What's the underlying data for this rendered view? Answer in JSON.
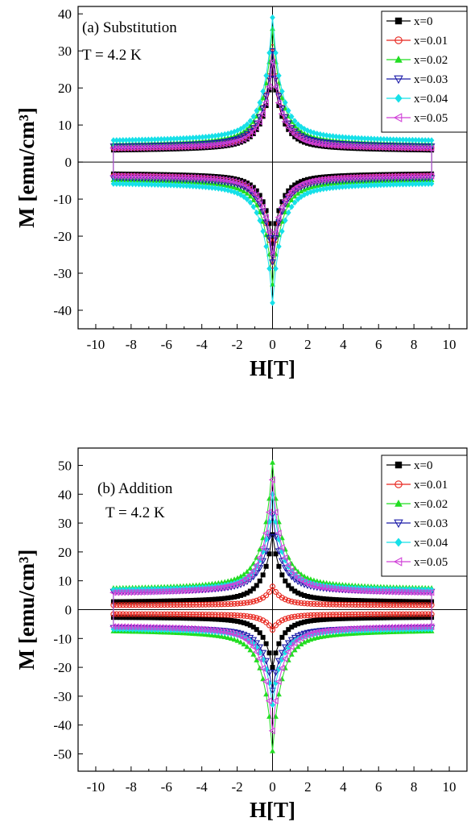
{
  "chart_data": [
    {
      "type": "line",
      "panel": "a",
      "annotation": [
        "(a) Substitution",
        "T = 4.2 K"
      ],
      "xlabel": "H[T]",
      "ylabel": "M [emu/cm³]",
      "xlim": [
        -11,
        11
      ],
      "ylim": [
        -45,
        42
      ],
      "xticks": [
        -10,
        -8,
        -6,
        -4,
        -2,
        0,
        2,
        4,
        6,
        8,
        10
      ],
      "yticks": [
        -40,
        -30,
        -20,
        -10,
        0,
        10,
        20,
        30,
        40
      ],
      "legend_position": "top-right",
      "grid": false,
      "series": [
        {
          "name": "x=0",
          "color": "#000000",
          "marker": "square",
          "peak": 26,
          "tail": 3,
          "peak_neg": -22
        },
        {
          "name": "x=0.01",
          "color": "#e8241c",
          "marker": "circle-open",
          "peak": 31,
          "tail": 3.5,
          "peak_neg": -28
        },
        {
          "name": "x=0.02",
          "color": "#22dd22",
          "marker": "triangle-up",
          "peak": 36,
          "tail": 4.5,
          "peak_neg": -33
        },
        {
          "name": "x=0.03",
          "color": "#1a1aa8",
          "marker": "triangle-down-open",
          "peak": 30,
          "tail": 4,
          "peak_neg": -27
        },
        {
          "name": "x=0.04",
          "color": "#16e0e8",
          "marker": "diamond",
          "peak": 39,
          "tail": 5.5,
          "peak_neg": -38
        },
        {
          "name": "x=0.05",
          "color": "#d040d8",
          "marker": "triangle-left-open",
          "peak": 27,
          "tail": 3.5,
          "peak_neg": -25
        }
      ]
    },
    {
      "type": "line",
      "panel": "b",
      "annotation": [
        "(b) Addition",
        "T = 4.2 K"
      ],
      "xlabel": "H[T]",
      "ylabel": "M [emu/cm³]",
      "xlim": [
        -11,
        11
      ],
      "ylim": [
        -56,
        56
      ],
      "xticks": [
        -10,
        -8,
        -6,
        -4,
        -2,
        0,
        2,
        4,
        6,
        8,
        10
      ],
      "yticks": [
        -50,
        -40,
        -30,
        -20,
        -10,
        0,
        10,
        20,
        30,
        40,
        50
      ],
      "legend_position": "top-right",
      "grid": false,
      "series": [
        {
          "name": "x=0",
          "color": "#000000",
          "marker": "square",
          "peak": 26,
          "tail": 2.5,
          "peak_neg": -20
        },
        {
          "name": "x=0.01",
          "color": "#e8241c",
          "marker": "circle-open",
          "peak": 8,
          "tail": 1.5,
          "peak_neg": -7
        },
        {
          "name": "x=0.02",
          "color": "#22dd22",
          "marker": "triangle-up",
          "peak": 51,
          "tail": 7,
          "peak_neg": -49
        },
        {
          "name": "x=0.03",
          "color": "#1a1aa8",
          "marker": "triangle-down-open",
          "peak": 33,
          "tail": 6,
          "peak_neg": -28
        },
        {
          "name": "x=0.04",
          "color": "#16e0e8",
          "marker": "diamond",
          "peak": 40,
          "tail": 6.5,
          "peak_neg": -33
        },
        {
          "name": "x=0.05",
          "color": "#d040d8",
          "marker": "triangle-left-open",
          "peak": 45,
          "tail": 5.5,
          "peak_neg": -42
        }
      ]
    }
  ]
}
